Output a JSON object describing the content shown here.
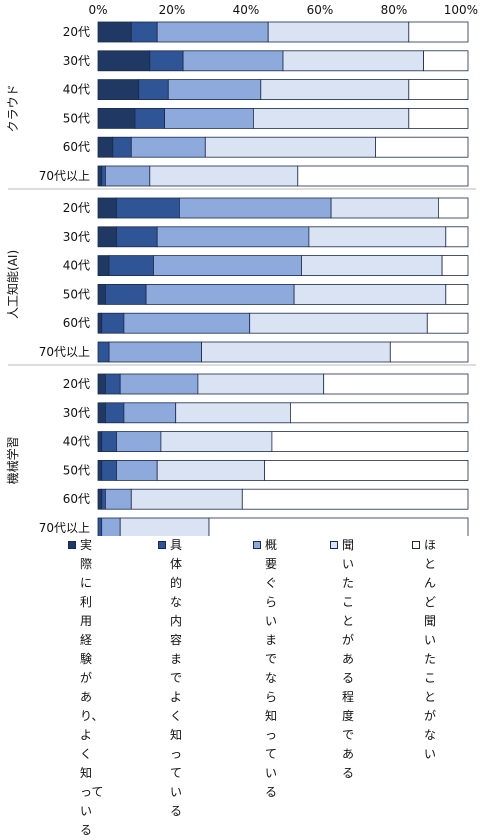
{
  "chart_data": {
    "type": "bar",
    "orientation": "horizontal",
    "stacked": true,
    "xlim": [
      0,
      100
    ],
    "x_tick_labels": [
      "0%",
      "20%",
      "40%",
      "60%",
      "80%",
      "100%"
    ],
    "grid": false,
    "legend_position": "bottom",
    "groups": [
      {
        "label": "クラウド",
        "categories": [
          "20代",
          "30代",
          "40代",
          "50代",
          "60代",
          "70代以上"
        ],
        "values": [
          [
            9,
            7,
            30,
            38,
            16
          ],
          [
            14,
            9,
            27,
            38,
            12
          ],
          [
            11,
            8,
            25,
            40,
            16
          ],
          [
            10,
            8,
            24,
            42,
            16
          ],
          [
            4,
            5,
            20,
            46,
            25
          ],
          [
            1,
            1,
            12,
            40,
            46
          ]
        ]
      },
      {
        "label": "人工知能(AI)",
        "categories": [
          "20代",
          "30代",
          "40代",
          "50代",
          "60代",
          "70代以上"
        ],
        "values": [
          [
            5,
            17,
            41,
            29,
            8
          ],
          [
            5,
            11,
            41,
            37,
            6
          ],
          [
            3,
            12,
            40,
            38,
            7
          ],
          [
            2,
            11,
            40,
            41,
            6
          ],
          [
            1,
            6,
            34,
            48,
            11
          ],
          [
            0,
            3,
            25,
            51,
            21
          ]
        ]
      },
      {
        "label": "機械学習",
        "categories": [
          "20代",
          "30代",
          "40代",
          "50代",
          "60代",
          "70代以上"
        ],
        "values": [
          [
            2,
            4,
            21,
            34,
            39
          ],
          [
            2,
            5,
            14,
            31,
            48
          ],
          [
            1,
            4,
            12,
            30,
            53
          ],
          [
            1,
            4,
            11,
            29,
            55
          ],
          [
            1,
            1,
            7,
            30,
            61
          ],
          [
            0,
            1,
            5,
            24,
            70
          ]
        ]
      }
    ],
    "series": [
      {
        "name": "実際に利用\n経験があり、\nよく知っている",
        "color": "#1f3864"
      },
      {
        "name": "具体的な\n内容まで\nよく知っている",
        "color": "#2f5597"
      },
      {
        "name": "概要ぐらい\nまでなら\n知っている",
        "color": "#8ea9db"
      },
      {
        "name": "聞いたことが\nある程度\nである",
        "color": "#dae3f3"
      },
      {
        "name": "ほとんど\n聞いたことが\nない",
        "color": "#ffffff"
      }
    ]
  }
}
